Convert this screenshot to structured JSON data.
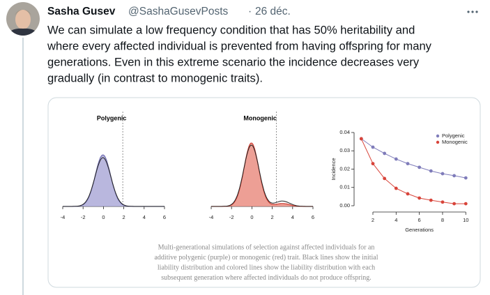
{
  "post": {
    "author": "Sasha Gusev",
    "handle": "@SashaGusevPosts",
    "separator": "·",
    "date": "26 déc.",
    "text_lines": [
      "We can simulate a low frequency condition that has 50% heritability and",
      "where every affected individual is prevented from having offspring for many",
      "generations. Even in this extreme scenario the incidence decreases very",
      "gradually (in contrast to monogenic traits)."
    ]
  },
  "figure": {
    "panels": [
      {
        "title": "Polygenic",
        "xticks": [
          -4,
          -2,
          0,
          2,
          4,
          6
        ]
      },
      {
        "title": "Monogenic",
        "xticks": [
          -4,
          -2,
          0,
          2,
          4,
          6
        ]
      }
    ],
    "chart_data": {
      "type": "line",
      "xlabel": "Generations",
      "ylabel": "Incidence",
      "x": [
        1,
        2,
        3,
        4,
        5,
        6,
        7,
        8,
        9,
        10
      ],
      "series": [
        {
          "name": "Polygenic",
          "color": "#7f7cba",
          "values": [
            0.0366,
            0.032,
            0.0286,
            0.0255,
            0.023,
            0.021,
            0.019,
            0.0175,
            0.0164,
            0.0152
          ]
        },
        {
          "name": "Monogenic",
          "color": "#d8443a",
          "values": [
            0.0366,
            0.023,
            0.0149,
            0.0095,
            0.0065,
            0.0042,
            0.003,
            0.002,
            0.0011,
            0.0011
          ]
        }
      ],
      "xlim": [
        0.5,
        10.5
      ],
      "xticks": [
        2,
        4,
        6,
        8,
        10
      ],
      "ylim": [
        0,
        0.04
      ],
      "yticks": [
        {
          "value": 0,
          "label": "0.00"
        },
        0.01,
        0.02,
        0.03,
        0.04
      ],
      "legend": "top-right"
    },
    "caption_lines": [
      "Multi-generational simulations of selection against affected individuals for an",
      "additive polygenic (purple) or monogenic (red) trait. Black lines show the initial",
      "liability distribution and colored lines show the liability distribution with each",
      "subsequent generation where affected individuals do not produce offspring."
    ]
  }
}
